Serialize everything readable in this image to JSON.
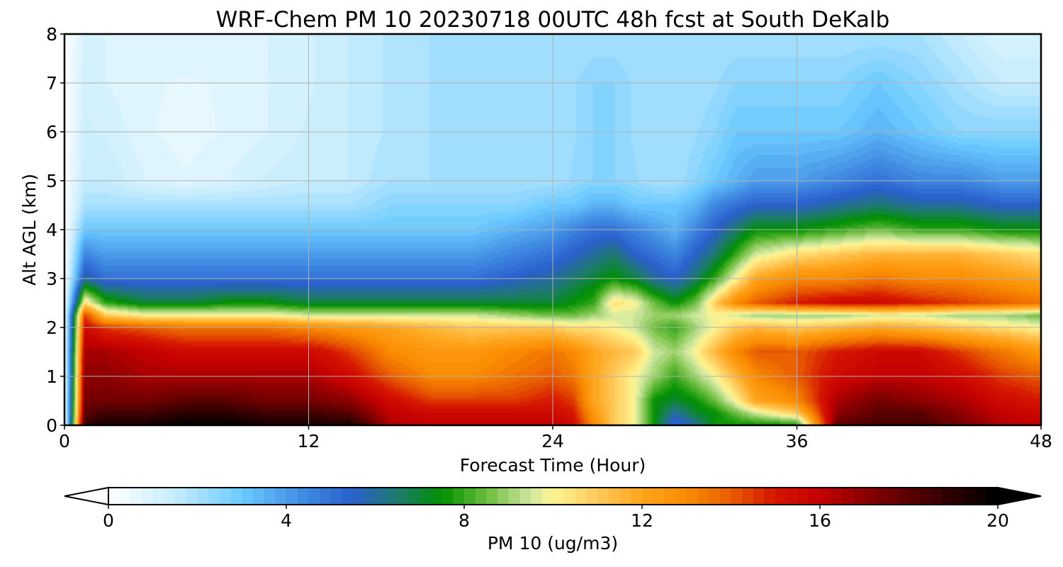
{
  "chart_data": {
    "type": "heatmap",
    "title": "WRF-Chem PM 10  20230718 00UTC 48h fcst at South DeKalb",
    "xlabel": "Forecast Time (Hour)",
    "ylabel": "Alt AGL (km)",
    "xlim": [
      0,
      48
    ],
    "ylim": [
      0,
      8
    ],
    "x_ticks": [
      "0",
      "12",
      "24",
      "36",
      "48"
    ],
    "y_ticks": [
      "0",
      "1",
      "2",
      "3",
      "4",
      "5",
      "6",
      "7",
      "8"
    ],
    "grid": true,
    "colorbar": {
      "label": "PM 10  (ug/m3)",
      "range": [
        0,
        20
      ],
      "ticks": [
        "0",
        "4",
        "8",
        "12",
        "16",
        "20"
      ],
      "extend": "both",
      "under_color": "#ffffff",
      "over_color": "#000000",
      "stops": [
        {
          "v": 0,
          "c": "#ffffff"
        },
        {
          "v": 1.5,
          "c": "#c6ecfd"
        },
        {
          "v": 3,
          "c": "#6ccaff"
        },
        {
          "v": 4.5,
          "c": "#3d86e0"
        },
        {
          "v": 5.5,
          "c": "#2a5fcc"
        },
        {
          "v": 6.5,
          "c": "#1e7a6e"
        },
        {
          "v": 7.5,
          "c": "#009000"
        },
        {
          "v": 8.5,
          "c": "#6cbd3e"
        },
        {
          "v": 9.5,
          "c": "#cfe7a0"
        },
        {
          "v": 10,
          "c": "#fff592"
        },
        {
          "v": 11,
          "c": "#ffc95a"
        },
        {
          "v": 12,
          "c": "#ffa41c"
        },
        {
          "v": 13,
          "c": "#fa8c00"
        },
        {
          "v": 14,
          "c": "#e85d00"
        },
        {
          "v": 15,
          "c": "#d51400"
        },
        {
          "v": 16,
          "c": "#c40000"
        },
        {
          "v": 17,
          "c": "#8c0000"
        },
        {
          "v": 18,
          "c": "#5a0000"
        },
        {
          "v": 19,
          "c": "#2a0000"
        },
        {
          "v": 20,
          "c": "#000000"
        }
      ]
    },
    "x": [
      0,
      1,
      2,
      4,
      6,
      8,
      10,
      12,
      14,
      16,
      18,
      20,
      22,
      24,
      25,
      26,
      27,
      28,
      29,
      30,
      31,
      32,
      33,
      34,
      36,
      38,
      40,
      42,
      44,
      46,
      48
    ],
    "y": [
      0,
      0.25,
      0.5,
      1,
      1.5,
      2,
      2.25,
      2.5,
      3,
      3.5,
      4,
      4.5,
      5,
      6,
      7,
      8
    ],
    "z": [
      [
        0,
        19,
        19.5,
        19.5,
        20,
        20,
        19.5,
        19.5,
        19.5,
        16.5,
        16,
        16,
        16,
        16,
        15.5,
        13,
        11,
        10,
        7.5,
        5,
        6,
        7.5,
        7.5,
        7.5,
        7.5,
        18,
        18.5,
        18.5,
        17.5,
        16.5,
        16
      ],
      [
        0,
        18,
        18.5,
        18.5,
        19,
        19,
        18.5,
        18.5,
        18,
        16,
        15.5,
        15.5,
        15.5,
        15.5,
        15,
        12.5,
        11,
        10,
        7.5,
        6,
        7,
        7.5,
        8.5,
        9.5,
        11,
        17,
        18,
        18,
        17,
        16,
        15.5
      ],
      [
        0,
        17.5,
        17.5,
        17.5,
        18,
        18,
        17.5,
        17.5,
        17,
        15.5,
        14.5,
        14.5,
        14.5,
        15,
        14.5,
        12,
        11,
        10,
        7.5,
        7,
        7.5,
        8.5,
        10,
        12,
        13,
        16.5,
        17.5,
        17,
        16.5,
        15.5,
        15
      ],
      [
        0,
        17,
        17,
        16.5,
        16.5,
        16.5,
        16.5,
        16.5,
        15.5,
        14,
        13,
        13,
        13.5,
        14,
        13.5,
        12,
        11,
        10,
        9,
        8,
        9,
        10,
        11.5,
        13,
        14,
        15.5,
        16,
        16,
        15.5,
        14.5,
        14
      ],
      [
        0,
        16.5,
        16.5,
        16,
        15.5,
        15.5,
        15.5,
        15.5,
        14.5,
        13,
        12.5,
        12.5,
        13,
        13.5,
        13,
        12,
        11.5,
        11,
        9.5,
        9,
        10,
        11.5,
        13,
        14,
        14,
        15,
        15.5,
        15.5,
        14.5,
        13.5,
        12.5
      ],
      [
        0,
        15.5,
        14.5,
        14,
        13.5,
        13.5,
        13.5,
        13,
        12.5,
        12,
        11.5,
        11,
        11,
        11,
        10.5,
        10.5,
        10,
        9.5,
        8.5,
        8,
        9,
        10,
        11,
        11.5,
        11,
        11.5,
        12,
        11.5,
        11,
        10.5,
        10
      ],
      [
        0,
        14.5,
        11,
        10,
        10,
        10,
        10,
        9.5,
        9.5,
        9.5,
        9.5,
        9.5,
        9,
        8.5,
        8.5,
        9,
        9.5,
        9.5,
        9,
        9,
        9.5,
        10,
        9.5,
        9,
        9,
        9,
        9.5,
        9.5,
        9,
        9,
        8.5
      ],
      [
        0,
        10.5,
        8,
        7,
        7,
        7.5,
        7.5,
        7,
        7,
        7,
        7,
        7,
        7,
        7,
        7.5,
        8,
        10.5,
        10,
        8.5,
        7.5,
        8.5,
        11,
        13,
        14,
        15,
        15.5,
        15.5,
        15,
        14.5,
        14,
        13.5
      ],
      [
        0,
        6,
        5,
        5,
        5,
        5,
        5,
        5,
        5,
        5,
        5,
        5,
        5.5,
        6,
        6.5,
        7,
        7.5,
        7,
        6,
        5.5,
        6.5,
        8,
        10,
        12,
        13,
        13,
        13.5,
        13,
        13,
        12.5,
        12
      ],
      [
        0,
        4.5,
        4,
        4,
        4,
        4,
        4,
        4,
        4,
        4,
        4,
        4,
        4.5,
        5,
        5.5,
        6,
        6.5,
        5.5,
        5,
        4.5,
        5.5,
        6.5,
        8,
        9.5,
        10.5,
        11,
        11.5,
        11.5,
        11.5,
        11,
        10.5
      ],
      [
        0,
        3,
        3,
        3,
        3,
        3,
        3,
        3,
        3,
        3,
        3,
        3,
        3.5,
        4,
        4.5,
        5,
        5,
        4.5,
        4,
        3.5,
        4.5,
        5.5,
        6.5,
        7.5,
        7.5,
        8,
        8.5,
        8,
        8,
        7.5,
        7.5
      ],
      [
        0,
        2,
        2,
        2,
        2,
        2,
        2,
        2,
        2,
        2.5,
        2.5,
        2.5,
        2.5,
        3,
        3,
        3.5,
        3.5,
        3,
        3,
        3,
        3.5,
        4.5,
        5,
        5.5,
        5.5,
        6,
        6.5,
        6,
        6,
        5.5,
        5.5
      ],
      [
        0,
        1.5,
        1.5,
        1,
        0.8,
        1,
        1.3,
        1.5,
        1.5,
        2,
        2,
        2,
        2,
        2,
        2.3,
        2.5,
        2.5,
        2.3,
        2,
        2,
        2.5,
        3,
        3.5,
        4,
        4,
        4.5,
        5,
        4.5,
        4.5,
        4,
        4
      ],
      [
        0,
        1.3,
        1.2,
        0.8,
        0.6,
        0.8,
        1,
        1.3,
        1.5,
        1.8,
        2,
        2,
        2,
        2,
        2.2,
        2.5,
        2.5,
        2.2,
        2,
        2,
        2.2,
        2.5,
        3,
        3,
        3,
        3,
        3.5,
        3,
        2.5,
        2.5,
        2.5
      ],
      [
        0,
        1.2,
        1,
        0.8,
        0.7,
        0.8,
        1,
        1.2,
        1.5,
        1.8,
        2,
        2,
        2,
        2,
        2.2,
        2.5,
        2.5,
        2.2,
        2,
        2,
        2,
        2.2,
        2.5,
        2.5,
        2.5,
        2.5,
        3,
        2.5,
        2,
        1.5,
        1.5
      ],
      [
        0,
        1,
        1,
        1,
        1,
        1,
        1,
        1.2,
        1.5,
        1.8,
        2,
        2,
        2,
        2,
        2,
        2,
        2,
        2,
        2,
        2,
        2,
        2,
        2,
        2,
        2,
        2,
        2,
        2,
        1.5,
        1,
        1
      ]
    ]
  }
}
